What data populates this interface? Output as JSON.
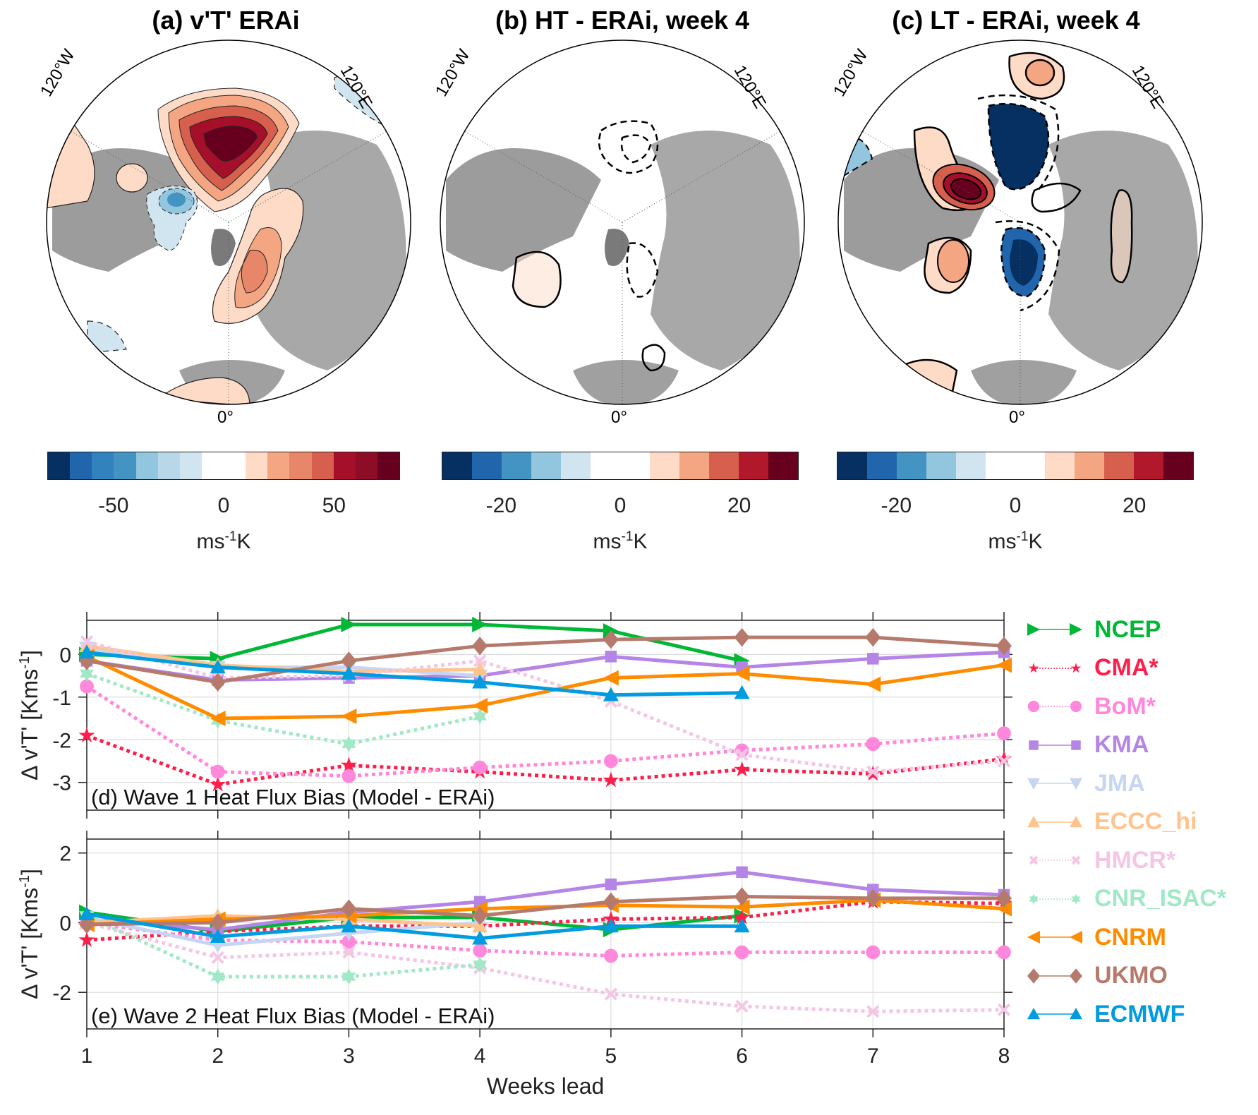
{
  "maps": [
    {
      "title": "(a) v'T' ERAi",
      "lon_labels": [
        "120°W",
        "120°E",
        "0°"
      ],
      "colorbar": {
        "colors": [
          "#053061",
          "#2166ac",
          "#3182bd",
          "#4393c3",
          "#92c5de",
          "#b8d8ea",
          "#d1e5f0",
          "#ffffff",
          "#ffffff",
          "#fddbc7",
          "#f4a582",
          "#e8866a",
          "#d6604d",
          "#a50f29",
          "#8c0d25",
          "#67001f"
        ],
        "range": [
          -80,
          80
        ],
        "ticks": [
          -50,
          0,
          50
        ],
        "tick_labels": [
          "-50",
          "0",
          "50"
        ],
        "unit_base": "ms",
        "unit_sup": "-1",
        "unit_tail": "K"
      }
    },
    {
      "title": "(b) HT - ERAi, week 4",
      "lon_labels": [
        "120°W",
        "120°E",
        "0°"
      ],
      "colorbar": {
        "colors": [
          "#053061",
          "#2166ac",
          "#4393c3",
          "#92c5de",
          "#d1e5f0",
          "#ffffff",
          "#ffffff",
          "#fddbc7",
          "#f4a582",
          "#d6604d",
          "#b2182b",
          "#67001f"
        ],
        "range": [
          -30,
          30
        ],
        "ticks": [
          -20,
          0,
          20
        ],
        "tick_labels": [
          "-20",
          "0",
          "20"
        ],
        "unit_base": "ms",
        "unit_sup": "-1",
        "unit_tail": "K"
      }
    },
    {
      "title": "(c) LT - ERAi, week 4",
      "lon_labels": [
        "120°W",
        "120°E",
        "0°"
      ],
      "colorbar": {
        "colors": [
          "#053061",
          "#2166ac",
          "#4393c3",
          "#92c5de",
          "#d1e5f0",
          "#ffffff",
          "#ffffff",
          "#fddbc7",
          "#f4a582",
          "#d6604d",
          "#b2182b",
          "#67001f"
        ],
        "range": [
          -30,
          30
        ],
        "ticks": [
          -20,
          0,
          20
        ],
        "tick_labels": [
          "-20",
          "0",
          "20"
        ],
        "unit_base": "ms",
        "unit_sup": "-1",
        "unit_tail": "K"
      }
    }
  ],
  "chart_data": [
    {
      "type": "line",
      "title": "(d) Wave 1 Heat Flux Bias (Model - ERAi)",
      "xlabel": "",
      "ylabel": "Δ v'T' [Kms⁻¹]",
      "ylabel_base": "Δ v'T' [Kms",
      "ylabel_sup": "-1",
      "ylabel_tail": "]",
      "x": [
        1,
        2,
        3,
        4,
        5,
        6,
        7,
        8
      ],
      "xlim": [
        1,
        8
      ],
      "ylim": [
        -3.65,
        0.8
      ],
      "yticks": [
        -3,
        -2,
        -1,
        0
      ],
      "grid": true,
      "series": [
        {
          "name": "NCEP",
          "values": [
            0.0,
            -0.1,
            0.7,
            0.7,
            0.55,
            -0.15,
            null,
            null
          ]
        },
        {
          "name": "CMA*",
          "values": [
            -1.9,
            -3.05,
            -2.6,
            -2.75,
            -2.95,
            -2.7,
            -2.8,
            -2.45
          ]
        },
        {
          "name": "BoM*",
          "values": [
            -0.75,
            -2.75,
            -2.85,
            -2.65,
            -2.5,
            -2.25,
            -2.1,
            -1.85
          ]
        },
        {
          "name": "KMA",
          "values": [
            -0.15,
            -0.6,
            -0.55,
            -0.5,
            -0.05,
            -0.3,
            -0.1,
            0.05
          ]
        },
        {
          "name": "JMA",
          "values": [
            0.15,
            -0.3,
            -0.3,
            -0.5,
            null,
            null,
            null,
            null
          ]
        },
        {
          "name": "ECCC_hi",
          "values": [
            0.2,
            -0.25,
            -0.4,
            -0.35,
            null,
            null,
            null,
            null
          ]
        },
        {
          "name": "HMCR*",
          "values": [
            0.3,
            -0.55,
            -0.5,
            -0.15,
            -1.1,
            -2.35,
            -2.75,
            -2.5
          ]
        },
        {
          "name": "CNR_ISAC*",
          "values": [
            -0.45,
            -1.55,
            -2.1,
            -1.45,
            null,
            null,
            null,
            null
          ]
        },
        {
          "name": "CNRM",
          "values": [
            -0.05,
            -1.5,
            -1.45,
            -1.2,
            -0.55,
            -0.45,
            -0.7,
            -0.25
          ]
        },
        {
          "name": "UKMO",
          "values": [
            -0.15,
            -0.65,
            -0.15,
            0.2,
            0.35,
            0.4,
            0.4,
            0.2
          ]
        },
        {
          "name": "ECMWF",
          "values": [
            0.05,
            -0.3,
            -0.45,
            -0.65,
            -0.95,
            -0.9,
            null,
            null
          ]
        }
      ]
    },
    {
      "type": "line",
      "title": "(e) Wave 2 Heat Flux Bias (Model - ERAi)",
      "xlabel": "Weeks lead",
      "ylabel": "Δ v'T' [Kms⁻¹]",
      "ylabel_base": "Δ v'T' [Kms",
      "ylabel_sup": "-1",
      "ylabel_tail": "]",
      "x": [
        1,
        2,
        3,
        4,
        5,
        6,
        7,
        8
      ],
      "xlim": [
        1,
        8
      ],
      "ylim": [
        -3.05,
        2.4
      ],
      "yticks": [
        -2,
        0,
        2
      ],
      "xticks": [
        1,
        2,
        3,
        4,
        5,
        6,
        7,
        8
      ],
      "grid": true,
      "series": [
        {
          "name": "NCEP",
          "values": [
            0.3,
            -0.25,
            0.15,
            0.15,
            -0.2,
            0.2,
            null,
            null
          ]
        },
        {
          "name": "CMA*",
          "values": [
            -0.5,
            -0.25,
            -0.1,
            -0.1,
            0.1,
            0.15,
            0.6,
            0.55
          ]
        },
        {
          "name": "BoM*",
          "values": [
            0.0,
            -0.5,
            -0.55,
            -0.8,
            -0.95,
            -0.85,
            -0.85,
            -0.85
          ]
        },
        {
          "name": "KMA",
          "values": [
            0.1,
            -0.2,
            0.3,
            0.6,
            1.1,
            1.45,
            0.95,
            0.8
          ]
        },
        {
          "name": "JMA",
          "values": [
            0.15,
            -0.65,
            -0.3,
            0.0,
            null,
            null,
            null,
            null
          ]
        },
        {
          "name": "ECCC_hi",
          "values": [
            0.0,
            0.2,
            0.1,
            -0.1,
            null,
            null,
            null,
            null
          ]
        },
        {
          "name": "HMCR*",
          "values": [
            0.0,
            -1.0,
            -0.85,
            -1.3,
            -2.05,
            -2.4,
            -2.55,
            -2.5
          ]
        },
        {
          "name": "CNR_ISAC*",
          "values": [
            0.2,
            -1.55,
            -1.55,
            -1.2,
            null,
            null,
            null,
            null
          ]
        },
        {
          "name": "CNRM",
          "values": [
            -0.05,
            0.1,
            0.2,
            0.4,
            0.5,
            0.45,
            0.65,
            0.4
          ]
        },
        {
          "name": "UKMO",
          "values": [
            -0.05,
            0.0,
            0.4,
            0.2,
            0.6,
            0.75,
            0.7,
            0.7
          ]
        },
        {
          "name": "ECMWF",
          "values": [
            0.25,
            -0.4,
            -0.1,
            -0.45,
            -0.1,
            -0.1,
            null,
            null
          ]
        }
      ]
    }
  ],
  "legend": {
    "placement": "right",
    "entries": [
      {
        "name": "NCEP",
        "color": "#00b836",
        "marker": "triangle-right",
        "dash": "solid"
      },
      {
        "name": "CMA*",
        "color": "#ff1e4a",
        "marker": "star",
        "dash": "dotted"
      },
      {
        "name": "BoM*",
        "color": "#ff87dc",
        "marker": "circle",
        "dash": "dotted"
      },
      {
        "name": "KMA",
        "color": "#b484e6",
        "marker": "square",
        "dash": "solid"
      },
      {
        "name": "JMA",
        "color": "#c6d6f2",
        "marker": "triangle-down",
        "dash": "solid"
      },
      {
        "name": "ECCC_hi",
        "color": "#ffc48e",
        "marker": "triangle-up",
        "dash": "solid"
      },
      {
        "name": "HMCR*",
        "color": "#f5c6e3",
        "marker": "x",
        "dash": "dotted"
      },
      {
        "name": "CNR_ISAC*",
        "color": "#a0e8c6",
        "marker": "hexagram",
        "dash": "dotted"
      },
      {
        "name": "CNRM",
        "color": "#ff8c00",
        "marker": "triangle-left",
        "dash": "solid"
      },
      {
        "name": "UKMO",
        "color": "#b57a6c",
        "marker": "diamond",
        "dash": "solid"
      },
      {
        "name": "ECMWF",
        "color": "#009cdf",
        "marker": "triangle-up",
        "dash": "solid"
      }
    ]
  }
}
